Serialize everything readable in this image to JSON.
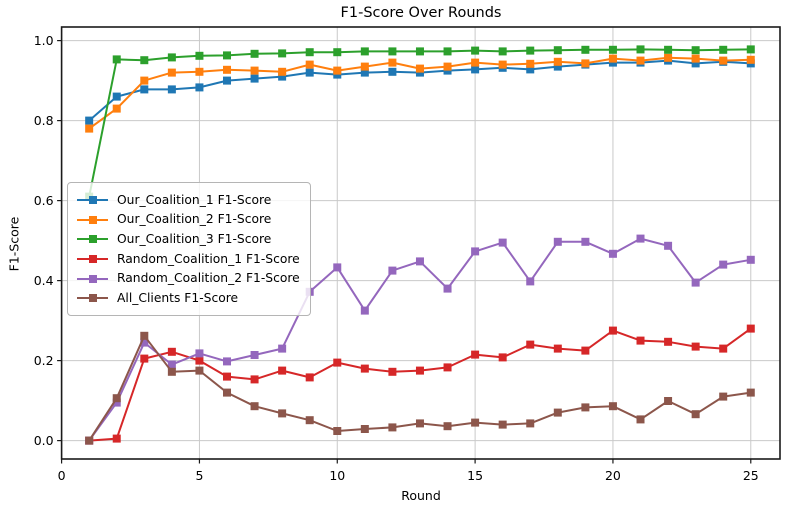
{
  "chart_data": {
    "type": "line",
    "title": "F1-Score Over Rounds",
    "xlabel": "Round",
    "ylabel": "F1-Score",
    "x": [
      1,
      2,
      3,
      4,
      5,
      6,
      7,
      8,
      9,
      10,
      11,
      12,
      13,
      14,
      15,
      16,
      17,
      18,
      19,
      20,
      21,
      22,
      23,
      24,
      25
    ],
    "xlim": [
      0,
      26.06
    ],
    "ylim": [
      -0.046,
      1.034
    ],
    "xticks": [
      0,
      5,
      10,
      15,
      20,
      25
    ],
    "yticks": [
      0.0,
      0.2,
      0.4,
      0.6,
      0.8,
      1.0
    ],
    "grid": true,
    "grid_color": "#c9c9c9",
    "axis_color": "#1a1a1a",
    "background_color": "#ffffff",
    "marker": "square",
    "legend_position": "center left",
    "series": [
      {
        "name": "Our_Coalition_1 F1-Score",
        "color": "#1f77b4",
        "values": [
          0.8,
          0.86,
          0.878,
          0.878,
          0.883,
          0.9,
          0.905,
          0.91,
          0.92,
          0.915,
          0.92,
          0.922,
          0.92,
          0.925,
          0.928,
          0.932,
          0.928,
          0.935,
          0.94,
          0.945,
          0.945,
          0.95,
          0.943,
          0.947,
          0.943
        ]
      },
      {
        "name": "Our_Coalition_2 F1-Score",
        "color": "#ff7f0e",
        "values": [
          0.78,
          0.83,
          0.9,
          0.92,
          0.922,
          0.927,
          0.925,
          0.922,
          0.94,
          0.925,
          0.935,
          0.945,
          0.93,
          0.935,
          0.945,
          0.94,
          0.942,
          0.947,
          0.943,
          0.955,
          0.95,
          0.957,
          0.955,
          0.95,
          0.952
        ]
      },
      {
        "name": "Our_Coalition_3 F1-Score",
        "color": "#2ca02c",
        "values": [
          0.61,
          0.953,
          0.951,
          0.958,
          0.962,
          0.963,
          0.967,
          0.968,
          0.971,
          0.971,
          0.973,
          0.973,
          0.973,
          0.973,
          0.975,
          0.973,
          0.975,
          0.976,
          0.977,
          0.977,
          0.978,
          0.977,
          0.976,
          0.977,
          0.978
        ]
      },
      {
        "name": "Random_Coalition_1 F1-Score",
        "color": "#d62728",
        "values": [
          0.0,
          0.005,
          0.205,
          0.222,
          0.2,
          0.16,
          0.153,
          0.175,
          0.158,
          0.195,
          0.18,
          0.172,
          0.175,
          0.183,
          0.215,
          0.208,
          0.24,
          0.23,
          0.225,
          0.275,
          0.25,
          0.247,
          0.235,
          0.23,
          0.28
        ]
      },
      {
        "name": "Random_Coalition_2 F1-Score",
        "color": "#9467bd",
        "values": [
          0.0,
          0.095,
          0.245,
          0.19,
          0.218,
          0.198,
          0.214,
          0.23,
          0.372,
          0.433,
          0.325,
          0.425,
          0.448,
          0.38,
          0.473,
          0.495,
          0.398,
          0.497,
          0.497,
          0.467,
          0.505,
          0.487,
          0.395,
          0.44,
          0.452
        ]
      },
      {
        "name": "All_Clients F1-Score",
        "color": "#8c564b",
        "values": [
          0.0,
          0.106,
          0.262,
          0.172,
          0.175,
          0.12,
          0.086,
          0.068,
          0.051,
          0.024,
          0.029,
          0.033,
          0.043,
          0.036,
          0.045,
          0.04,
          0.043,
          0.07,
          0.083,
          0.086,
          0.053,
          0.099,
          0.066,
          0.11,
          0.12
        ]
      }
    ]
  }
}
